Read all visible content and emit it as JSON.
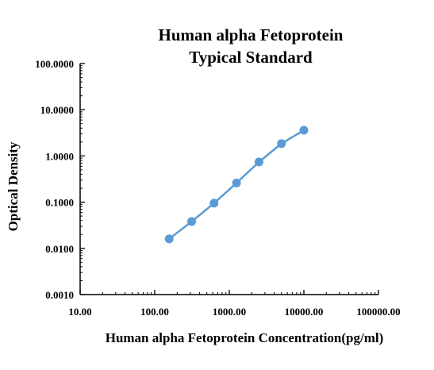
{
  "chart_data": {
    "type": "line",
    "title": [
      "Human alpha Fetoprotein",
      "Typical Standard"
    ],
    "xlabel": "Human alpha Fetoprotein Concentration(pg/ml)",
    "ylabel": "Optical Density",
    "xscale": "log",
    "yscale": "log",
    "xlim": [
      10,
      100000
    ],
    "ylim": [
      0.001,
      100
    ],
    "x_ticks": [
      10,
      100,
      1000,
      10000,
      100000
    ],
    "x_tick_labels": [
      "10.00",
      "100.00",
      "1000.00",
      "10000.00",
      "100000.00"
    ],
    "y_ticks": [
      0.001,
      0.01,
      0.1,
      1,
      10,
      100
    ],
    "y_tick_labels": [
      "0.0010",
      "0.0100",
      "0.1000",
      "1.0000",
      "10.0000",
      "100.0000"
    ],
    "grid": false,
    "legend": "none",
    "series": [
      {
        "color": "#5b9bd5",
        "x": [
          156.25,
          312.5,
          625,
          1250,
          2500,
          5000,
          10000
        ],
        "y": [
          0.016,
          0.038,
          0.095,
          0.26,
          0.74,
          1.85,
          3.6
        ]
      }
    ]
  }
}
